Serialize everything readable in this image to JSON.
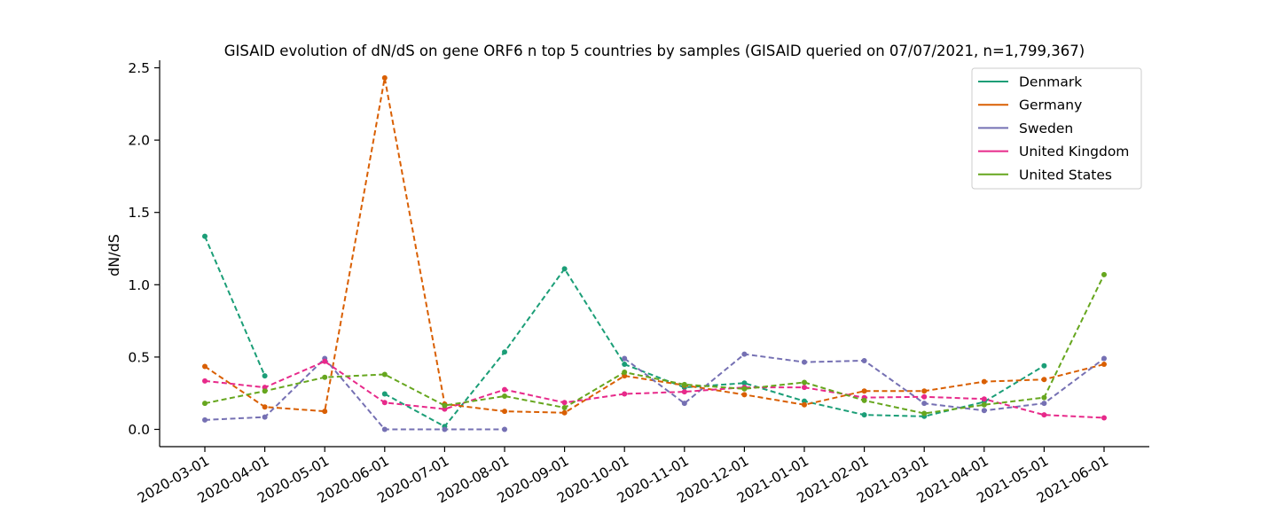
{
  "chart_data": {
    "type": "line",
    "title": "GISAID evolution of dN/dS on gene ORF6 n top 5 countries by samples (GISAID queried on 07/07/2021, n=1,799,367)",
    "xlabel": "",
    "ylabel": "dN/dS",
    "ylim": [
      -0.12,
      2.55
    ],
    "yticks": [
      "0.0",
      "0.5",
      "1.0",
      "1.5",
      "2.0",
      "2.5"
    ],
    "categories": [
      "2020-03-01",
      "2020-04-01",
      "2020-05-01",
      "2020-06-01",
      "2020-07-01",
      "2020-08-01",
      "2020-09-01",
      "2020-10-01",
      "2020-11-01",
      "2020-12-01",
      "2021-01-01",
      "2021-02-01",
      "2021-03-01",
      "2021-04-01",
      "2021-05-01",
      "2021-06-01"
    ],
    "grid": false,
    "legend_position": "top-right",
    "series": [
      {
        "name": "Denmark",
        "color": "#1b9e77",
        "values": [
          1.335,
          0.37,
          null,
          0.245,
          0.02,
          0.535,
          1.11,
          0.45,
          0.29,
          0.32,
          0.195,
          0.1,
          0.09,
          0.19,
          0.44,
          null
        ]
      },
      {
        "name": "Germany",
        "color": "#d95f02",
        "values": [
          0.435,
          0.155,
          0.125,
          2.43,
          0.175,
          0.125,
          0.115,
          0.37,
          0.305,
          0.24,
          0.17,
          0.265,
          0.265,
          0.33,
          0.345,
          0.45
        ]
      },
      {
        "name": "Sweden",
        "color": "#7570b3",
        "values": [
          0.065,
          0.085,
          0.49,
          0.0,
          0.0,
          0.0,
          null,
          0.49,
          0.18,
          0.52,
          0.465,
          0.475,
          0.18,
          0.13,
          0.18,
          0.49
        ]
      },
      {
        "name": "United Kingdom",
        "color": "#e7298a",
        "values": [
          0.335,
          0.29,
          0.47,
          0.185,
          0.14,
          0.275,
          0.185,
          0.245,
          0.26,
          0.29,
          0.29,
          0.22,
          0.225,
          0.21,
          0.1,
          0.08
        ]
      },
      {
        "name": "United States",
        "color": "#66a61e",
        "values": [
          0.18,
          0.265,
          0.36,
          0.38,
          0.165,
          0.23,
          0.15,
          0.395,
          0.31,
          0.28,
          0.325,
          0.2,
          0.11,
          0.17,
          0.22,
          1.07
        ]
      }
    ]
  }
}
